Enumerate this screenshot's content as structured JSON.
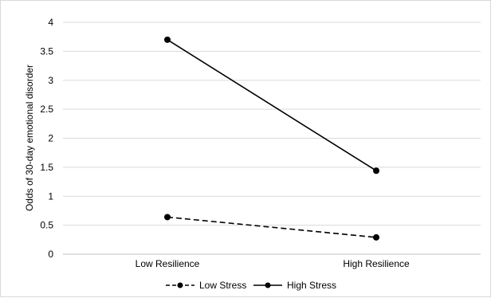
{
  "chart_data": {
    "type": "line",
    "title": "",
    "xlabel": "",
    "ylabel": "Odds of 30-day emotional disorder",
    "categories": [
      "Low Resilience",
      "High Resilience"
    ],
    "ylim": [
      0,
      4
    ],
    "yticks": [
      "0",
      "0.5",
      "1",
      "1.5",
      "2",
      "2.5",
      "3",
      "3.5",
      "4"
    ],
    "grid": true,
    "legend_position": "bottom",
    "series": [
      {
        "name": "Low Stress",
        "values": [
          0.64,
          0.29
        ],
        "line_style": "dashed",
        "marker": "circle",
        "color": "#000000"
      },
      {
        "name": "High Stress",
        "values": [
          3.7,
          1.44
        ],
        "line_style": "solid",
        "marker": "circle",
        "color": "#000000"
      }
    ]
  }
}
